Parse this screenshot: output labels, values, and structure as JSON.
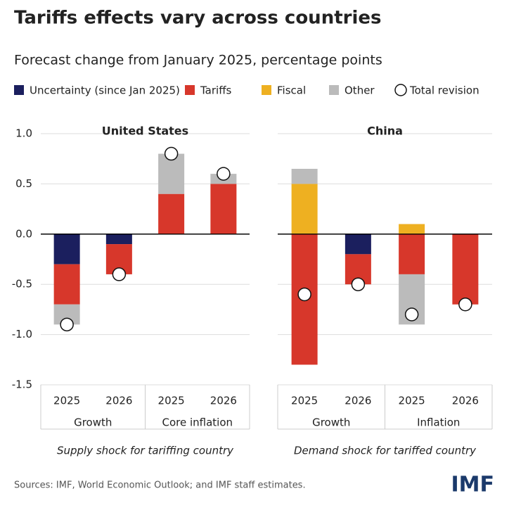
{
  "title": "Tariffs effects vary across countries",
  "subtitle": "Forecast change from January 2025, percentage points",
  "source": "Sources: IMF, World Economic Outlook; and IMF staff estimates.",
  "logo": "IMF",
  "chart_data": [
    {
      "type": "bar",
      "stacked": true,
      "title": "United States",
      "categories": [
        "2025",
        "2026",
        "2025",
        "2026"
      ],
      "groups": [
        "Growth",
        "Core inflation"
      ],
      "footnote": "Supply shock for tariffing country",
      "ylim": [
        -1.5,
        1.0
      ],
      "yticks": [
        {
          "value": 1.0,
          "label": "1.0"
        },
        0.5,
        {
          "value": 0,
          "label": "0.0"
        },
        -0.5,
        {
          "value": -1.0,
          "label": "-1.0"
        },
        -1.5
      ],
      "grid": true,
      "series": [
        {
          "name": "Uncertainty (since Jan 2025)",
          "color": "#1b1f5e",
          "values": [
            -0.3,
            -0.1,
            0,
            0
          ]
        },
        {
          "name": "Tariffs",
          "color": "#d7372b",
          "values": [
            -0.4,
            -0.3,
            0.4,
            0.5
          ]
        },
        {
          "name": "Fiscal",
          "color": "#eeb021",
          "values": [
            0,
            0,
            0,
            0
          ]
        },
        {
          "name": "Other",
          "color": "#bbbbbb",
          "values": [
            -0.2,
            0,
            0.4,
            0.1
          ]
        }
      ],
      "totals": {
        "name": "Total revision",
        "values": [
          -0.9,
          -0.4,
          0.8,
          0.6
        ]
      }
    },
    {
      "type": "bar",
      "stacked": true,
      "title": "China",
      "categories": [
        "2025",
        "2026",
        "2025",
        "2026"
      ],
      "groups": [
        "Growth",
        "Inflation"
      ],
      "footnote": "Demand shock for tariffed country",
      "ylim": [
        -1.5,
        1.0
      ],
      "yticks": [
        1.0,
        0.5,
        0,
        -0.5,
        -1.0,
        -1.5
      ],
      "grid": true,
      "series": [
        {
          "name": "Uncertainty (since Jan 2025)",
          "color": "#1b1f5e",
          "values": [
            0,
            -0.2,
            0,
            0
          ]
        },
        {
          "name": "Tariffs",
          "color": "#d7372b",
          "values": [
            -1.3,
            -0.3,
            -0.4,
            -0.7
          ]
        },
        {
          "name": "Fiscal",
          "color": "#eeb021",
          "values": [
            0.5,
            0,
            0.1,
            0
          ]
        },
        {
          "name": "Other",
          "color": "#bbbbbb",
          "values": [
            0.15,
            0,
            -0.5,
            0
          ]
        }
      ],
      "totals": {
        "name": "Total revision",
        "values": [
          -0.6,
          -0.5,
          -0.8,
          -0.7
        ]
      }
    }
  ]
}
